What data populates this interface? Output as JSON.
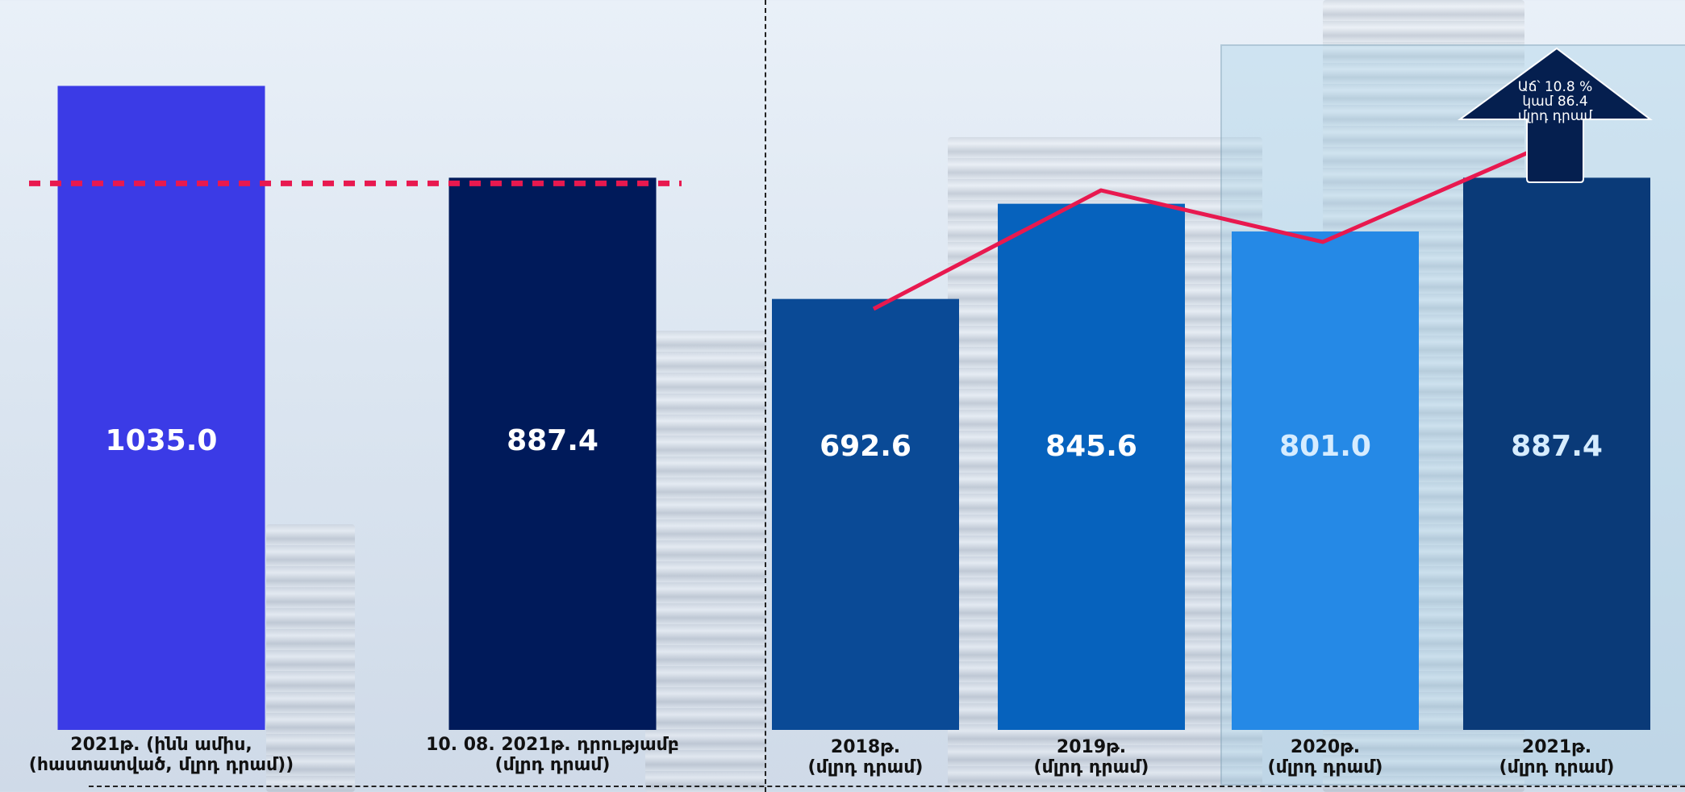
{
  "chart_data": [
    {
      "type": "bar",
      "categories": [
        [
          "2021թ. (ինն ամիս,",
          "(հաստատված, մլրդ դրամ))"
        ],
        [
          "10. 08. 2021թ. դրությամբ",
          "(մլրդ դրամ)"
        ]
      ],
      "values": [
        1035.0,
        887.4
      ],
      "value_labels": [
        "1035.0",
        "887.4"
      ],
      "colors": [
        "#3b3be6",
        "#001a5a"
      ],
      "reference_line": 887.4,
      "reference_color": "#e8194f",
      "ylim": [
        0,
        1100
      ]
    },
    {
      "type": "bar",
      "categories": [
        [
          "2018թ.",
          "(մլրդ դրամ)"
        ],
        [
          "2019թ.",
          "(մլրդ դրամ)"
        ],
        [
          "2020թ.",
          "(մլրդ դրամ)"
        ],
        [
          "2021թ.",
          "(մլրդ դրամ)"
        ]
      ],
      "values": [
        692.6,
        845.6,
        801.0,
        887.4
      ],
      "value_labels": [
        "692.6",
        "845.6",
        "801.0",
        "887.4"
      ],
      "colors": [
        "#0a4a96",
        "#0662bd",
        "#2589e6",
        "#0a3a78"
      ],
      "value_label_colors": [
        "#ffffff",
        "#ffffff",
        "#d6ecff",
        "#d6ecff"
      ],
      "trend_line": {
        "values": [
          692.6,
          887.4,
          801.0,
          1000.0
        ],
        "color": "#e8194f"
      },
      "ylim": [
        0,
        1100
      ],
      "annotation": {
        "lines": [
          "Աճ՝ 10.8 %",
          "կամ 86.4",
          "մլրդ դրամ"
        ],
        "color": "#051f4f"
      }
    }
  ]
}
